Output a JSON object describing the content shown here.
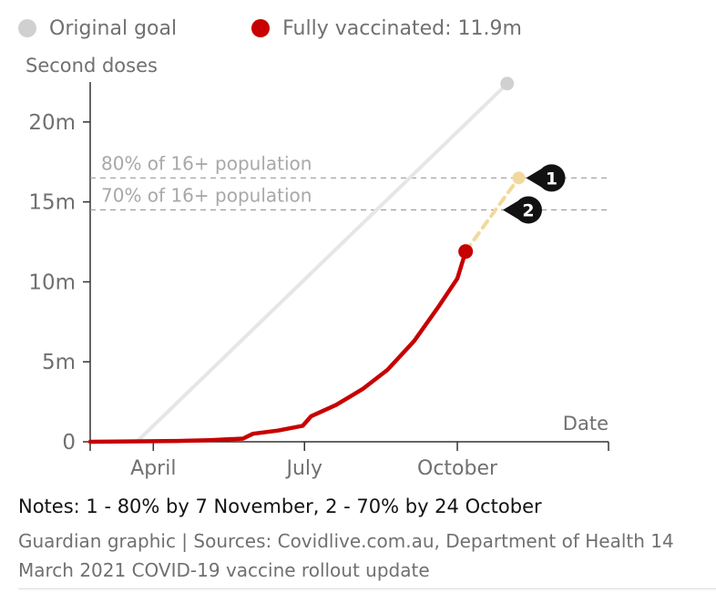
{
  "colors": {
    "original_goal": "#d0d0d0",
    "original_goal_line": "#e6e6e6",
    "fully_vaccinated": "#c70000",
    "projection": "#f2d99b",
    "axis": "#333333",
    "reference_line": "#999999",
    "reference_text": "#a8a8a8",
    "marker": "#121212"
  },
  "legend": {
    "items": [
      {
        "label": "Original goal",
        "color": "#d0d0d0"
      },
      {
        "label": "Fully vaccinated: 11.9m",
        "color": "#c70000"
      }
    ]
  },
  "notes": "Notes: 1 - 80% by 7 November, 2 - 70% by 24 October",
  "source": "Guardian graphic | Sources: Covidlive.com.au, Department of Health 14 March 2021 COVID-19 vaccine rollout update",
  "chart_data": {
    "type": "line",
    "ylabel": "Second doses",
    "xlabel": "Date",
    "ylim": [
      0,
      22.5
    ],
    "y_unit": "m",
    "yticks": [
      {
        "value": 0,
        "label": "0"
      },
      {
        "value": 5,
        "label": "5m"
      },
      {
        "value": 10,
        "label": "10m"
      },
      {
        "value": 15,
        "label": "15m"
      },
      {
        "value": 20,
        "label": "20m"
      }
    ],
    "xlim": [
      "2021-02-22",
      "2021-12-31"
    ],
    "xticks": [
      {
        "date": "2021-04-01",
        "label": "April"
      },
      {
        "date": "2021-07-01",
        "label": "July"
      },
      {
        "date": "2021-10-01",
        "label": "October"
      }
    ],
    "reference_lines": [
      {
        "label": "80% of 16+ population",
        "value": 16.5
      },
      {
        "label": "70% of 16+ population",
        "value": 14.5
      }
    ],
    "series": [
      {
        "name": "Original goal",
        "style": "line",
        "points": [
          {
            "date": "2021-03-22",
            "value": 0
          },
          {
            "date": "2021-10-31",
            "value": 22.4
          }
        ]
      },
      {
        "name": "Fully vaccinated: 11.9m",
        "style": "line",
        "points": [
          {
            "date": "2021-02-22",
            "value": 0
          },
          {
            "date": "2021-04-15",
            "value": 0.05
          },
          {
            "date": "2021-05-05",
            "value": 0.1
          },
          {
            "date": "2021-05-25",
            "value": 0.2
          },
          {
            "date": "2021-05-31",
            "value": 0.5
          },
          {
            "date": "2021-06-15",
            "value": 0.7
          },
          {
            "date": "2021-06-30",
            "value": 1.0
          },
          {
            "date": "2021-07-05",
            "value": 1.6
          },
          {
            "date": "2021-07-20",
            "value": 2.3
          },
          {
            "date": "2021-08-05",
            "value": 3.3
          },
          {
            "date": "2021-08-20",
            "value": 4.5
          },
          {
            "date": "2021-09-05",
            "value": 6.3
          },
          {
            "date": "2021-09-20",
            "value": 8.5
          },
          {
            "date": "2021-10-01",
            "value": 10.2
          },
          {
            "date": "2021-10-06",
            "value": 11.9
          }
        ]
      },
      {
        "name": "Projection",
        "style": "dashed",
        "points": [
          {
            "date": "2021-10-06",
            "value": 11.9
          },
          {
            "date": "2021-10-24",
            "value": 14.5
          },
          {
            "date": "2021-11-07",
            "value": 16.5
          }
        ]
      }
    ],
    "markers": [
      {
        "label": "1",
        "date": "2021-11-07",
        "value": 16.5
      },
      {
        "label": "2",
        "date": "2021-10-24",
        "value": 14.5
      }
    ]
  }
}
